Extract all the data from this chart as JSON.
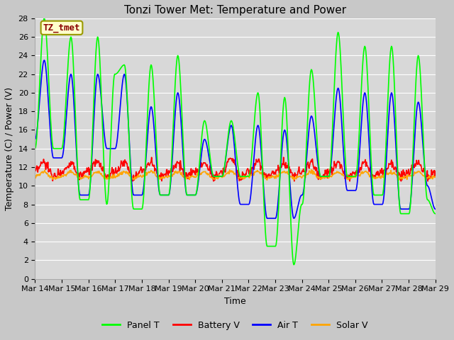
{
  "title": "Tonzi Tower Met: Temperature and Power",
  "xlabel": "Time",
  "ylabel": "Temperature (C) / Power (V)",
  "ylim": [
    0,
    28
  ],
  "yticks": [
    0,
    2,
    4,
    6,
    8,
    10,
    12,
    14,
    16,
    18,
    20,
    22,
    24,
    26,
    28
  ],
  "x_labels": [
    "Mar 14",
    "Mar 15",
    "Mar 16",
    "Mar 17",
    "Mar 18",
    "Mar 19",
    "Mar 20",
    "Mar 21",
    "Mar 22",
    "Mar 23",
    "Mar 24",
    "Mar 25",
    "Mar 26",
    "Mar 27",
    "Mar 28",
    "Mar 29"
  ],
  "series": {
    "panel_t": {
      "color": "#00ff00",
      "label": "Panel T",
      "linewidth": 1.2
    },
    "battery_v": {
      "color": "#ff0000",
      "label": "Battery V",
      "linewidth": 1.2
    },
    "air_t": {
      "color": "#0000ff",
      "label": "Air T",
      "linewidth": 1.2
    },
    "solar_v": {
      "color": "#ffa500",
      "label": "Solar V",
      "linewidth": 1.2
    }
  },
  "annotation": {
    "text": "TZ_tmet",
    "fontsize": 9,
    "color": "#8b0000",
    "bbox_facecolor": "#ffffcc",
    "bbox_edgecolor": "#999900"
  },
  "fig_facecolor": "#c8c8c8",
  "ax_facecolor": "#d8d8d8",
  "grid_color": "#ffffff",
  "figsize": [
    6.4,
    4.8
  ],
  "dpi": 100
}
